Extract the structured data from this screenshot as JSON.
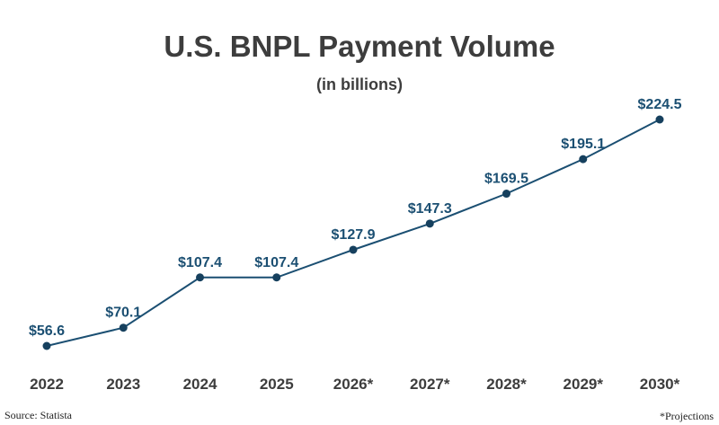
{
  "chart_data": {
    "type": "line",
    "title": "U.S. BNPL Payment Volume",
    "subtitle": "(in billions)",
    "categories": [
      "2022",
      "2023",
      "2024",
      "2025",
      "2026*",
      "2027*",
      "2028*",
      "2029*",
      "2030*"
    ],
    "series": [
      {
        "values": [
          56.6,
          70.1,
          107.4,
          107.4,
          127.9,
          147.3,
          169.5,
          195.1,
          224.5
        ],
        "labels": [
          "$56.6",
          "$70.1",
          "$107.4",
          "$107.4",
          "$127.9",
          "$147.3",
          "$169.5",
          "$195.1",
          "$224.5"
        ]
      }
    ],
    "xlabel": "",
    "ylabel": "",
    "grid": false,
    "legend": "none",
    "colors": {
      "line": "#1b4f72",
      "point": "#16405e",
      "label": "#1b4f72",
      "tick": "#3d3d3d"
    }
  },
  "source": "Source: Statista",
  "note": "*Projections"
}
